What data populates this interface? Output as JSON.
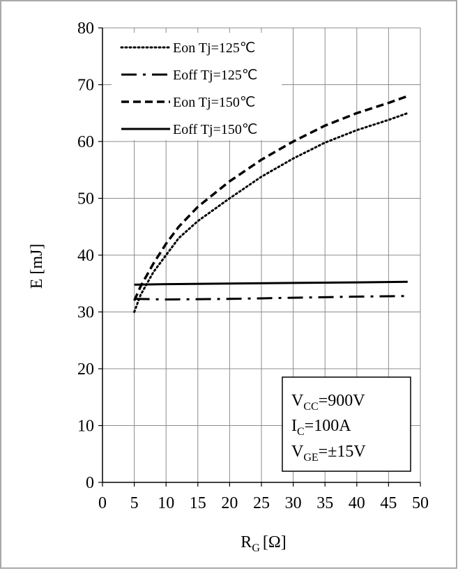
{
  "chart_data": {
    "type": "line",
    "xlabel": "R",
    "xlabel_sub": "G",
    "xlabel_unit": "[Ω]",
    "ylabel": "E [mJ]",
    "xlim": [
      0,
      50
    ],
    "ylim": [
      0,
      80
    ],
    "x_ticks": [
      "0",
      "5",
      "10",
      "15",
      "20",
      "25",
      "30",
      "35",
      "40",
      "45",
      "50"
    ],
    "y_ticks": [
      "0",
      "10",
      "20",
      "30",
      "40",
      "50",
      "60",
      "70",
      "80"
    ],
    "grid": true,
    "legend_position": "top-left",
    "series": [
      {
        "name": "Eon Tj=125℃",
        "style": "dotted",
        "points": [
          [
            5,
            30
          ],
          [
            6,
            33
          ],
          [
            8,
            37
          ],
          [
            10,
            40
          ],
          [
            12,
            43
          ],
          [
            15,
            46
          ],
          [
            20,
            50
          ],
          [
            25,
            53.8
          ],
          [
            30,
            57
          ],
          [
            35,
            59.8
          ],
          [
            40,
            62
          ],
          [
            45,
            63.8
          ],
          [
            48,
            65
          ]
        ]
      },
      {
        "name": "Eoff Tj=125℃",
        "style": "dashdot",
        "points": [
          [
            5,
            32.3
          ],
          [
            10,
            32.2
          ],
          [
            20,
            32.3
          ],
          [
            30,
            32.5
          ],
          [
            40,
            32.7
          ],
          [
            48,
            32.8
          ]
        ]
      },
      {
        "name": "Eon Tj=150℃",
        "style": "dashed",
        "points": [
          [
            5,
            32
          ],
          [
            6,
            34.5
          ],
          [
            8,
            38.5
          ],
          [
            10,
            42
          ],
          [
            12,
            45
          ],
          [
            15,
            48.5
          ],
          [
            20,
            53
          ],
          [
            25,
            56.8
          ],
          [
            30,
            60
          ],
          [
            35,
            62.8
          ],
          [
            40,
            65
          ],
          [
            45,
            66.8
          ],
          [
            48,
            68
          ]
        ]
      },
      {
        "name": "Eoff Tj=150℃",
        "style": "solid",
        "points": [
          [
            5,
            34.8
          ],
          [
            10,
            34.9
          ],
          [
            20,
            35
          ],
          [
            30,
            35.1
          ],
          [
            40,
            35.2
          ],
          [
            48,
            35.3
          ]
        ]
      }
    ],
    "annotation": {
      "vcc": {
        "main": "V",
        "sub": "CC",
        "value": "=900V"
      },
      "ic": {
        "main": "I",
        "sub": "C",
        "value": "=100A"
      },
      "vge": {
        "main": "V",
        "sub": "GE",
        "value": "=±15V"
      }
    }
  }
}
